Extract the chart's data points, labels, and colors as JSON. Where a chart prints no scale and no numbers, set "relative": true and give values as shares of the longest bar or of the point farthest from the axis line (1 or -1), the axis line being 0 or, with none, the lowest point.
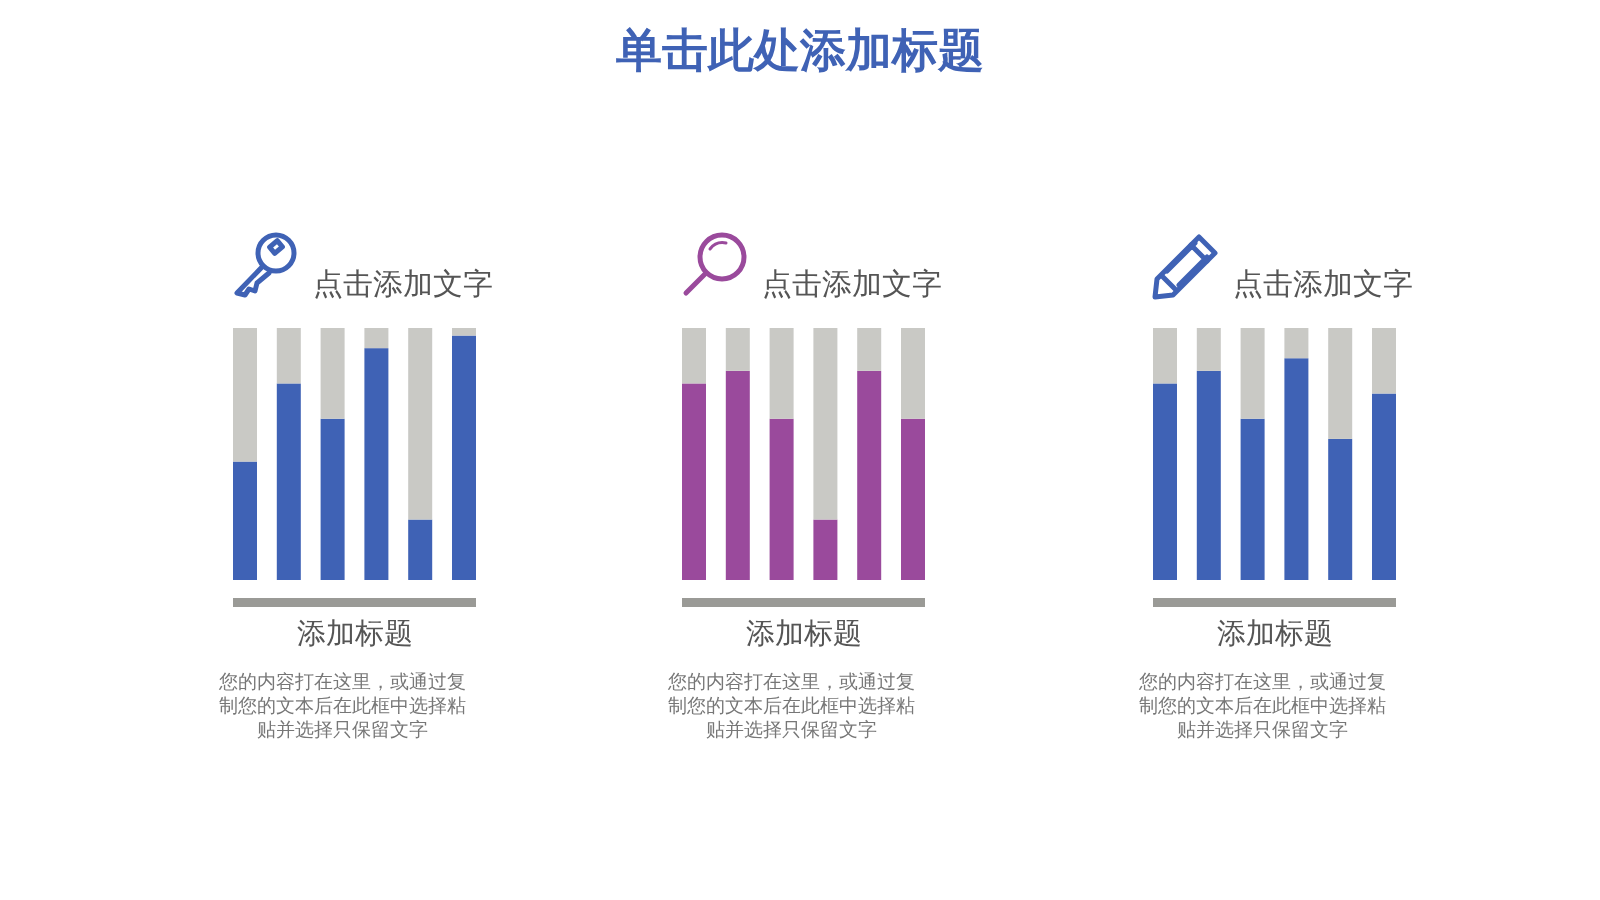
{
  "chart_data": [
    {
      "type": "other",
      "title": "单击此处添加标题"
    },
    {
      "type": "bar",
      "title": "点击添加文字",
      "subtitle": "添加标题",
      "annotations": [
        "您的内容打在这里，或通过复制您的文本后在此框中选择粘贴并选择只保留文字"
      ],
      "categories": [
        null,
        null,
        null,
        null,
        null,
        null
      ],
      "stacked": true,
      "relative": true,
      "series": [
        {
          "color": "#3f62b5",
          "values": [
            0.47,
            0.78,
            0.64,
            0.92,
            0.24,
            0.97
          ]
        },
        {
          "color": "#c9c9c5",
          "values": [
            0.53,
            0.22,
            0.36,
            0.08,
            0.76,
            0.03
          ]
        }
      ]
    },
    {
      "type": "bar",
      "title": "点击添加文字",
      "subtitle": "添加标题",
      "annotations": [
        "您的内容打在这里，或通过复制您的文本后在此框中选择粘贴并选择只保留文字"
      ],
      "categories": [
        null,
        null,
        null,
        null,
        null,
        null
      ],
      "stacked": true,
      "relative": true,
      "series": [
        {
          "color": "#9a4a9c",
          "values": [
            0.78,
            0.83,
            0.64,
            0.24,
            0.83,
            0.64
          ]
        },
        {
          "color": "#c9c9c5",
          "values": [
            0.22,
            0.17,
            0.36,
            0.76,
            0.17,
            0.36
          ]
        }
      ]
    },
    {
      "type": "bar",
      "title": "点击添加文字",
      "subtitle": "添加标题",
      "annotations": [
        "您的内容打在这里，或通过复制您的文本后在此框中选择粘贴并选择只保留文字"
      ],
      "categories": [
        null,
        null,
        null,
        null,
        null,
        null
      ],
      "stacked": true,
      "relative": true,
      "series": [
        {
          "color": "#3f62b5",
          "values": [
            0.78,
            0.83,
            0.64,
            0.88,
            0.56,
            0.74
          ]
        },
        {
          "color": "#c9c9c5",
          "values": [
            0.22,
            0.17,
            0.36,
            0.12,
            0.44,
            0.26
          ]
        }
      ]
    }
  ]
}
